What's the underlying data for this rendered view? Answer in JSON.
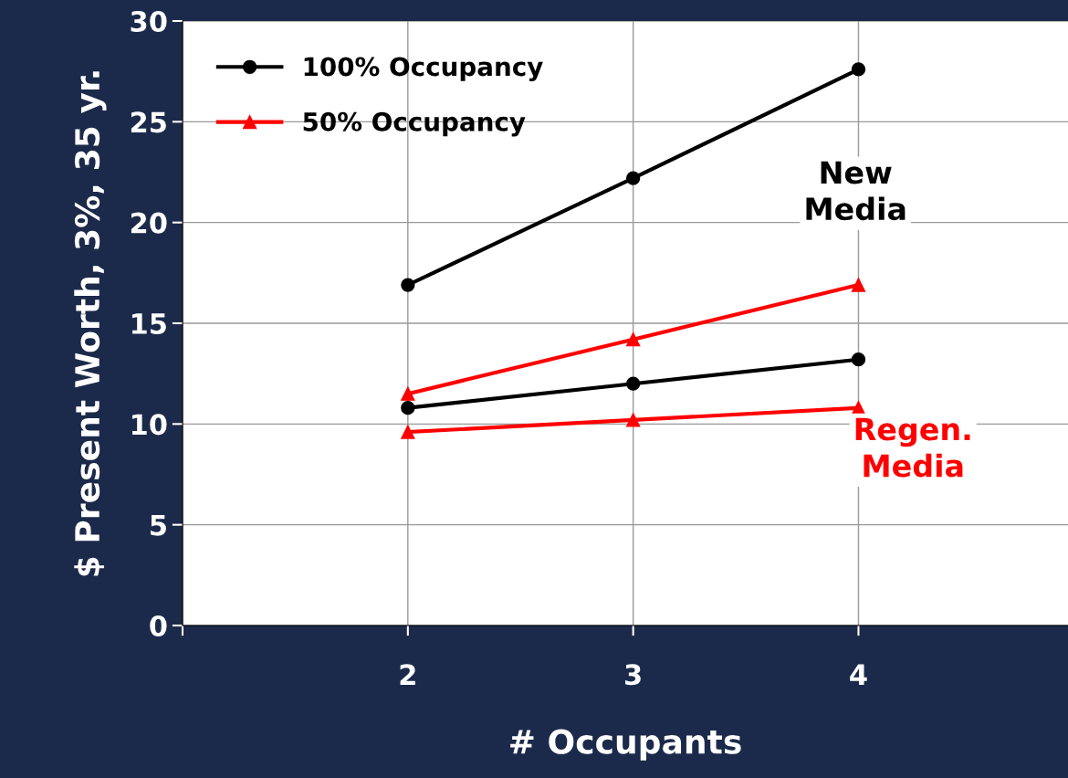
{
  "chart_data": {
    "type": "line",
    "xlabel": "# Occupants",
    "ylabel": "$ Present Worth, 3%, 35 yr.",
    "x": [
      2,
      3,
      4
    ],
    "series": [
      {
        "name": "100% Occupancy",
        "color": "#000000",
        "marker": "circle",
        "values": [
          16.9,
          22.2,
          27.6
        ]
      },
      {
        "name": "50% Occupancy",
        "color": "#ff0000",
        "marker": "triangle",
        "values": [
          11.5,
          14.2,
          16.9
        ]
      },
      {
        "color": "#000000",
        "marker": "circle",
        "values": [
          10.8,
          12.0,
          13.2
        ]
      },
      {
        "color": "#ff0000",
        "marker": "triangle",
        "values": [
          9.6,
          10.2,
          10.8
        ]
      }
    ],
    "xlim": [
      1,
      4.93
    ],
    "xticks": [
      {
        "value": 1,
        "label": null
      },
      2,
      3,
      4
    ],
    "ylim": [
      0,
      30
    ],
    "yticks": [
      0,
      5,
      10,
      15,
      20,
      25,
      30
    ],
    "grid": true,
    "legend": "top left",
    "line_style": "solid",
    "annotations": [
      "New\nMedia",
      "Regen.\nMedia"
    ]
  }
}
